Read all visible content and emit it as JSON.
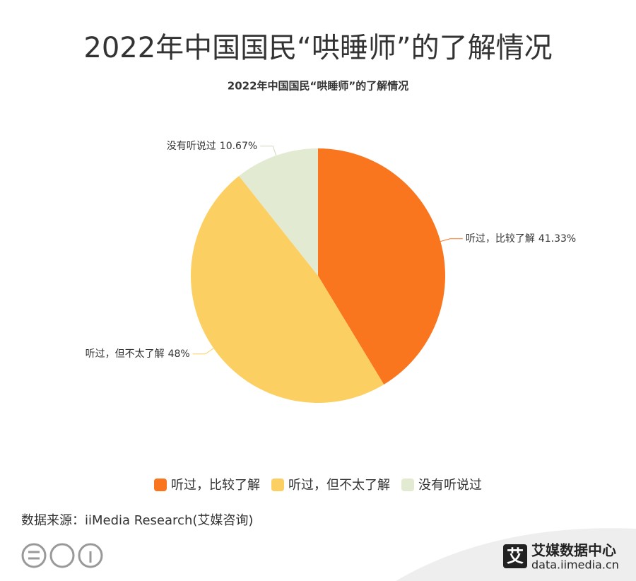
{
  "header_title": "2022年中国国民“哄睡师”的了解情况",
  "chart_data": {
    "type": "pie",
    "title": "2022年中国国民“哄睡师”的了解情况",
    "categories": [
      "听过，比较了解",
      "听过，但不太了解",
      "没有听说过"
    ],
    "values": [
      41.33,
      48,
      10.67
    ],
    "value_labels": [
      "41.33%",
      "48%",
      "10.67%"
    ],
    "colors": [
      "#fa761e",
      "#fccf62",
      "#e2ebd2"
    ],
    "legend": "bottom"
  },
  "source": "数据来源：iiMedia Research(艾媒咨询)",
  "brand": {
    "icon": "艾",
    "name": "艾媒数据中心",
    "url": "data.iimedia.cn"
  }
}
